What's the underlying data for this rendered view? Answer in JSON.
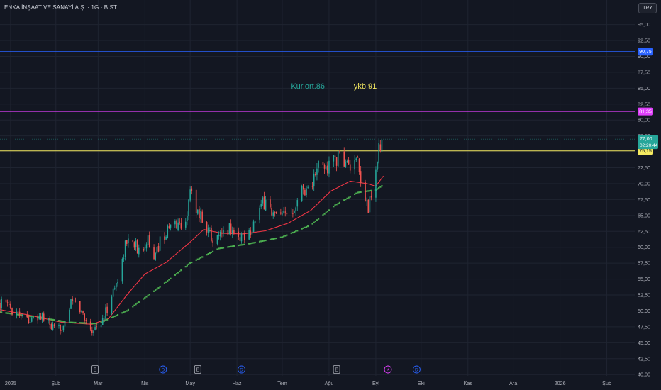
{
  "title": "ENKA İNŞAAT VE SANAYİ A.Ş. · 1G · BIST",
  "currency": "TRY",
  "annotations": {
    "kur_ort": "Kur.ort.86",
    "ykb": "ykb 91"
  },
  "price_labels": {
    "blue_line": "90,75",
    "magenta_line": "81,35",
    "last_price": "77,00",
    "countdown": "02:20:44",
    "yellow_line": "75,15"
  },
  "events": [
    "E",
    "D",
    "E",
    "D",
    "E",
    "⚡",
    "D"
  ],
  "colors": {
    "background": "#131722",
    "up": "#26a69a",
    "down": "#ef5350",
    "ma_red": "#f23645",
    "ma_green": "#4caf50",
    "blue_line": "#2962ff",
    "magenta_line": "#e040fb",
    "yellow_line": "#f5ea61",
    "kur_text": "#26a69a",
    "ykb_text": "#f5ea61"
  },
  "chart_data": {
    "type": "candlestick",
    "y_ticks": [
      "95,00",
      "92,50",
      "90,00",
      "87,50",
      "85,00",
      "82,50",
      "80,00",
      "77,50",
      "75,00",
      "72,50",
      "70,00",
      "67,50",
      "65,00",
      "62,50",
      "60,00",
      "57,50",
      "55,00",
      "52,50",
      "50,00",
      "47,50",
      "45,00",
      "42,50",
      "40,00"
    ],
    "y_values": [
      95,
      92.5,
      90,
      87.5,
      85,
      82.5,
      80,
      77.5,
      75,
      72.5,
      70,
      67.5,
      65,
      62.5,
      60,
      57.5,
      55,
      52.5,
      50,
      47.5,
      45,
      42.5,
      40
    ],
    "ylim": [
      39.8,
      96.4
    ],
    "x_ticks": [
      "2025",
      "Şub",
      "Mar",
      "Nis",
      "May",
      "Haz",
      "Tem",
      "Ağu",
      "Eyl",
      "Eki",
      "Kas",
      "Ara",
      "2026",
      "Şub"
    ],
    "x_tick_dates": [
      "2025-01-02",
      "2025-02-01",
      "2025-03-01",
      "2025-04-01",
      "2025-05-01",
      "2025-06-01",
      "2025-07-01",
      "2025-08-01",
      "2025-09-01",
      "2025-10-01",
      "2025-11-01",
      "2025-12-01",
      "2026-01-01",
      "2026-02-01"
    ],
    "xlim": [
      "2024-12-26",
      "2026-02-20"
    ],
    "horizontal_lines": [
      {
        "value": 90.75,
        "label": "90,75",
        "color": "#2962ff"
      },
      {
        "value": 81.35,
        "label": "81,35",
        "color": "#e040fb"
      },
      {
        "value": 75.15,
        "label": "75,15",
        "color": "#f5ea61"
      }
    ],
    "last_price": 77.0,
    "text_annotations": [
      {
        "text": "Kur.ort.86",
        "date": "2025-07-18",
        "value": 84.9
      },
      {
        "text": "ykb 91",
        "date": "2025-08-25",
        "value": 84.9
      }
    ],
    "event_markers": [
      {
        "type": "E",
        "date": "2025-02-27"
      },
      {
        "type": "D",
        "date": "2025-04-13"
      },
      {
        "type": "E",
        "date": "2025-05-06"
      },
      {
        "type": "D",
        "date": "2025-06-04"
      },
      {
        "type": "E",
        "date": "2025-08-06"
      },
      {
        "type": "⚡",
        "date": "2025-09-09"
      },
      {
        "type": "D",
        "date": "2025-09-28"
      }
    ],
    "anchors": [
      [
        "2024-12-26",
        51.2
      ],
      [
        "2025-01-08",
        49.8
      ],
      [
        "2025-01-16",
        48.4
      ],
      [
        "2025-01-23",
        49.2
      ],
      [
        "2025-02-01",
        46.5
      ],
      [
        "2025-02-05",
        47.6
      ],
      [
        "2025-02-12",
        51.6
      ],
      [
        "2025-02-17",
        50.2
      ],
      [
        "2025-02-25",
        47.0
      ],
      [
        "2025-03-04",
        48.4
      ],
      [
        "2025-03-10",
        52.5
      ],
      [
        "2025-03-15",
        55.6
      ],
      [
        "2025-03-19",
        60.4
      ],
      [
        "2025-03-24",
        61.5
      ],
      [
        "2025-03-28",
        59.0
      ],
      [
        "2025-04-03",
        61.8
      ],
      [
        "2025-04-07",
        57.5
      ],
      [
        "2025-04-11",
        61.2
      ],
      [
        "2025-04-16",
        62.6
      ],
      [
        "2025-04-22",
        63.8
      ],
      [
        "2025-04-26",
        63.0
      ],
      [
        "2025-04-29",
        65.6
      ],
      [
        "2025-05-02",
        69.8
      ],
      [
        "2025-05-05",
        66.0
      ],
      [
        "2025-05-09",
        64.5
      ],
      [
        "2025-05-14",
        62.3
      ],
      [
        "2025-05-19",
        61.0
      ],
      [
        "2025-05-22",
        61.8
      ],
      [
        "2025-05-27",
        63.2
      ],
      [
        "2025-06-02",
        61.5
      ],
      [
        "2025-06-10",
        62.8
      ],
      [
        "2025-06-16",
        65.8
      ],
      [
        "2025-06-20",
        67.5
      ],
      [
        "2025-06-25",
        65.0
      ],
      [
        "2025-07-01",
        64.5
      ],
      [
        "2025-07-07",
        65.8
      ],
      [
        "2025-07-14",
        69.2
      ],
      [
        "2025-07-20",
        69.5
      ],
      [
        "2025-07-25",
        72.8
      ],
      [
        "2025-07-31",
        72.4
      ],
      [
        "2025-08-04",
        74.0
      ],
      [
        "2025-08-11",
        73.8
      ],
      [
        "2025-08-14",
        72.5
      ],
      [
        "2025-08-20",
        72.9
      ],
      [
        "2025-08-23",
        68.5
      ],
      [
        "2025-08-27",
        66.4
      ],
      [
        "2025-08-30",
        68.0
      ],
      [
        "2025-09-02",
        74.2
      ],
      [
        "2025-09-05",
        77.0
      ]
    ],
    "ma_red": [
      [
        "2024-12-26",
        50.2
      ],
      [
        "2025-01-15",
        49.3
      ],
      [
        "2025-02-05",
        48.2
      ],
      [
        "2025-02-25",
        47.9
      ],
      [
        "2025-03-08",
        48.8
      ],
      [
        "2025-03-20",
        52.5
      ],
      [
        "2025-04-01",
        55.8
      ],
      [
        "2025-04-15",
        57.6
      ],
      [
        "2025-04-30",
        60.6
      ],
      [
        "2025-05-10",
        62.8
      ],
      [
        "2025-05-22",
        62.2
      ],
      [
        "2025-06-05",
        62.1
      ],
      [
        "2025-06-20",
        62.6
      ],
      [
        "2025-07-05",
        63.8
      ],
      [
        "2025-07-20",
        65.8
      ],
      [
        "2025-08-02",
        68.8
      ],
      [
        "2025-08-15",
        70.4
      ],
      [
        "2025-08-26",
        70.0
      ],
      [
        "2025-09-01",
        69.6
      ],
      [
        "2025-09-06",
        71.2
      ]
    ],
    "ma_green": [
      [
        "2024-12-26",
        49.8
      ],
      [
        "2025-01-20",
        49.0
      ],
      [
        "2025-02-10",
        48.2
      ],
      [
        "2025-03-01",
        48.0
      ],
      [
        "2025-03-20",
        50.0
      ],
      [
        "2025-04-10",
        53.6
      ],
      [
        "2025-05-01",
        57.5
      ],
      [
        "2025-05-20",
        59.8
      ],
      [
        "2025-06-10",
        60.6
      ],
      [
        "2025-07-01",
        61.6
      ],
      [
        "2025-07-20",
        63.5
      ],
      [
        "2025-08-05",
        66.6
      ],
      [
        "2025-08-20",
        68.6
      ],
      [
        "2025-09-01",
        69.0
      ],
      [
        "2025-09-06",
        69.8
      ]
    ]
  }
}
